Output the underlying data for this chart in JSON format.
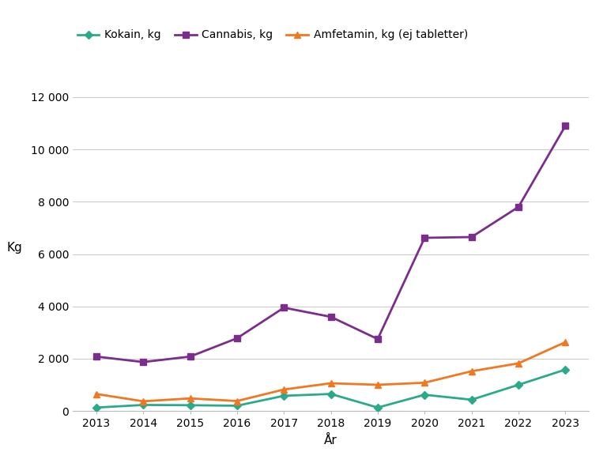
{
  "years": [
    2013,
    2014,
    2015,
    2016,
    2017,
    2018,
    2019,
    2020,
    2021,
    2022,
    2023
  ],
  "kokain": [
    130,
    230,
    220,
    200,
    580,
    650,
    130,
    620,
    430,
    1000,
    1580
  ],
  "cannabis": [
    2080,
    1870,
    2080,
    2780,
    3950,
    3600,
    2750,
    6620,
    6650,
    7800,
    10900
  ],
  "amfetamin": [
    650,
    370,
    480,
    380,
    820,
    1060,
    1000,
    1080,
    1520,
    1820,
    2630
  ],
  "kokain_color": "#2aaa8a",
  "cannabis_color": "#7b2d8b",
  "amfetamin_color": "#f07820",
  "kokain_label": "Kokain, kg",
  "cannabis_label": "Cannabis, kg",
  "amfetamin_label": "Amfetamin, kg (ej tabletter)",
  "xlabel": "År",
  "ylabel": "Kg",
  "ylim": [
    0,
    12500
  ],
  "yticks": [
    0,
    2000,
    4000,
    6000,
    8000,
    10000,
    12000
  ],
  "background_color": "#ffffff",
  "plot_area_color": "#ffffff",
  "grid_color": "#cccccc"
}
